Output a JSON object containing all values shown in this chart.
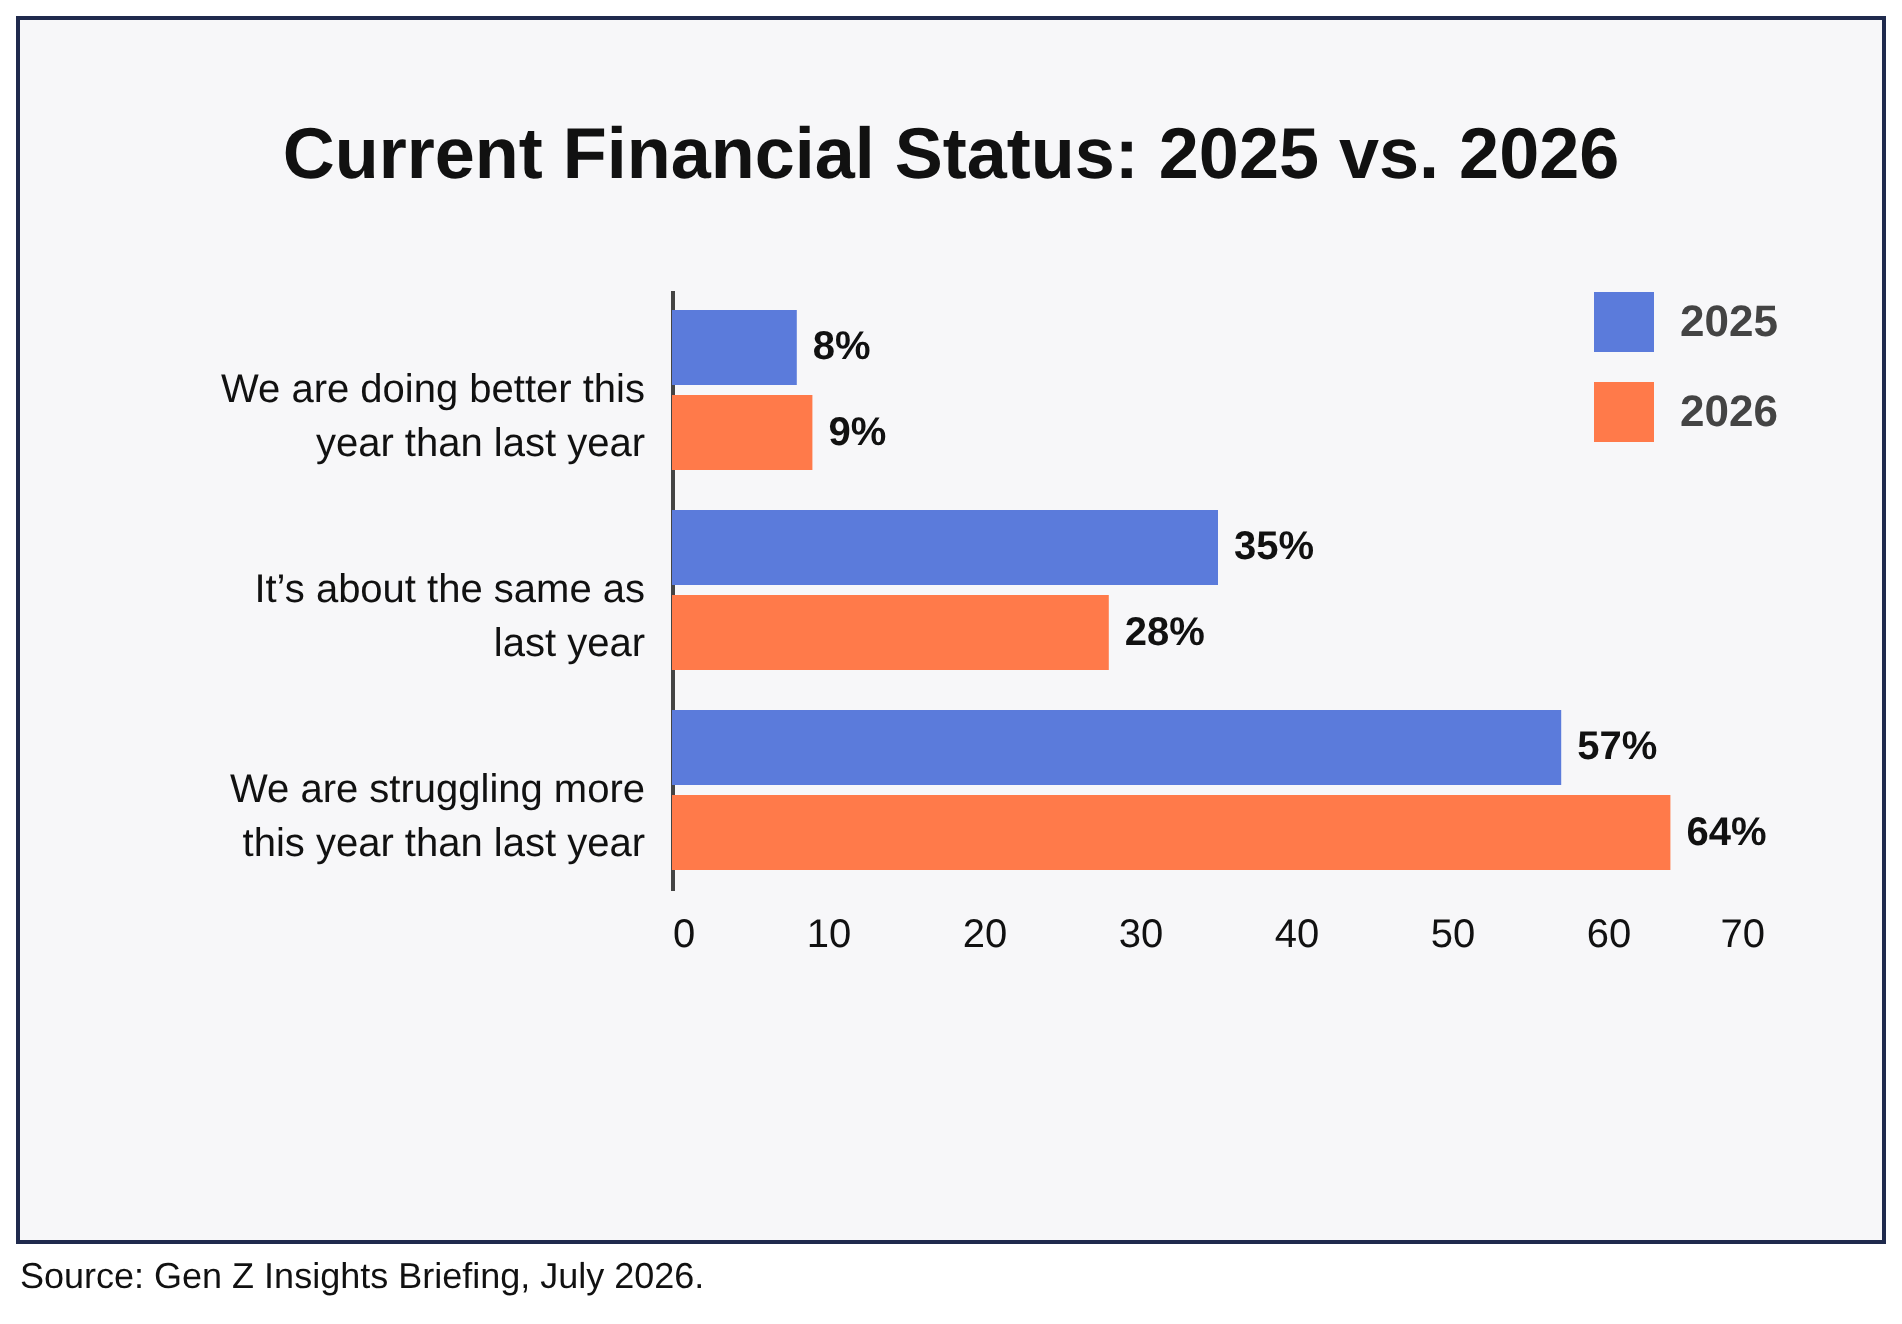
{
  "chart_data": {
    "type": "bar",
    "orientation": "horizontal",
    "title": "Current Financial Status: 2025 vs. 2026",
    "categories": [
      "We are doing better this year than last year",
      "It’s about the same as last year",
      "We are struggling more this year than last year"
    ],
    "series": [
      {
        "name": "2025",
        "color": "#5b7bdb",
        "values": [
          8,
          35,
          57
        ],
        "value_labels": [
          "8%",
          "35%",
          "57%"
        ]
      },
      {
        "name": "2026",
        "color": "#ff7a4a",
        "values": [
          9,
          28,
          64
        ],
        "value_labels": [
          "9%",
          "28%",
          "64%"
        ]
      }
    ],
    "xlim": [
      0,
      70
    ],
    "xticks": [
      0,
      10,
      20,
      30,
      40,
      50,
      60,
      70
    ],
    "legend": "top right",
    "annotations": [
      "Source: Gen Z Insights Briefing, July 2026."
    ]
  }
}
